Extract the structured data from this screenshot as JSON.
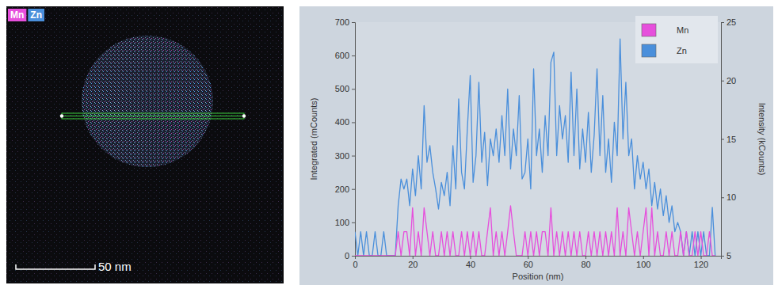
{
  "chart_data": {
    "type": "line",
    "xlabel": "Position (nm)",
    "ylabel": "Integrated (mCounts)",
    "y2label": "Intensity (kCounts)",
    "xlim": [
      0,
      127
    ],
    "xticks": [
      0,
      20,
      40,
      60,
      80,
      100,
      120
    ],
    "ylim": [
      0,
      700
    ],
    "yticks": [
      0,
      100,
      200,
      300,
      400,
      500,
      600,
      700
    ],
    "y2lim": [
      5,
      25
    ],
    "y2ticks": [
      5,
      10,
      15,
      20,
      25
    ],
    "legend": "upper right",
    "x": [
      0,
      1,
      2,
      3,
      4,
      5,
      6,
      7,
      8,
      9,
      10,
      11,
      12,
      13,
      14,
      15,
      16,
      17,
      18,
      19,
      20,
      21,
      22,
      23,
      24,
      25,
      26,
      27,
      28,
      29,
      30,
      31,
      32,
      33,
      34,
      35,
      36,
      37,
      38,
      39,
      40,
      41,
      42,
      43,
      44,
      45,
      46,
      47,
      48,
      49,
      50,
      51,
      52,
      53,
      54,
      55,
      56,
      57,
      58,
      59,
      60,
      61,
      62,
      63,
      64,
      65,
      66,
      67,
      68,
      69,
      70,
      71,
      72,
      73,
      74,
      75,
      76,
      77,
      78,
      79,
      80,
      81,
      82,
      83,
      84,
      85,
      86,
      87,
      88,
      89,
      90,
      91,
      92,
      93,
      94,
      95,
      96,
      97,
      98,
      99,
      100,
      101,
      102,
      103,
      104,
      105,
      106,
      107,
      108,
      109,
      110,
      111,
      112,
      113,
      114,
      115,
      116,
      117,
      118,
      119,
      120,
      121,
      122,
      123,
      124,
      125
    ],
    "series": [
      {
        "name": "Mn",
        "color": "#e64fdc",
        "values": [
          0,
          0,
          0,
          0,
          0,
          0,
          0,
          0,
          0,
          0,
          0,
          0,
          0,
          0,
          0,
          72,
          0,
          72,
          72,
          0,
          144,
          0,
          72,
          0,
          144,
          72,
          0,
          72,
          0,
          0,
          72,
          0,
          72,
          0,
          72,
          0,
          0,
          72,
          0,
          72,
          0,
          72,
          0,
          72,
          0,
          0,
          72,
          144,
          0,
          72,
          0,
          72,
          0,
          72,
          150,
          72,
          0,
          0,
          0,
          72,
          0,
          72,
          0,
          72,
          0,
          72,
          72,
          0,
          144,
          0,
          72,
          0,
          72,
          0,
          72,
          0,
          72,
          0,
          72,
          0,
          0,
          72,
          0,
          72,
          0,
          72,
          0,
          72,
          0,
          72,
          0,
          144,
          0,
          72,
          0,
          144,
          72,
          0,
          72,
          0,
          72,
          144,
          0,
          144,
          0,
          72,
          0,
          0,
          72,
          0,
          72,
          0,
          0,
          72,
          0,
          72,
          0,
          0,
          72,
          0,
          72,
          0,
          0,
          72,
          0,
          0
        ]
      },
      {
        "name": "Zn",
        "color": "#4a8fdb",
        "values": [
          72,
          0,
          72,
          0,
          72,
          0,
          0,
          72,
          0,
          0,
          72,
          0,
          0,
          0,
          0,
          150,
          230,
          200,
          230,
          150,
          260,
          180,
          300,
          200,
          450,
          280,
          330,
          250,
          200,
          140,
          220,
          180,
          250,
          150,
          330,
          200,
          470,
          250,
          200,
          380,
          540,
          220,
          300,
          520,
          280,
          370,
          210,
          350,
          300,
          380,
          280,
          420,
          300,
          500,
          260,
          380,
          300,
          480,
          230,
          250,
          350,
          200,
          560,
          300,
          380,
          250,
          420,
          300,
          580,
          610,
          300,
          450,
          350,
          420,
          280,
          550,
          300,
          500,
          260,
          380,
          280,
          430,
          250,
          360,
          560,
          300,
          480,
          250,
          350,
          220,
          400,
          300,
          650,
          350,
          520,
          300,
          350,
          200,
          300,
          230,
          280,
          200,
          260,
          150,
          220,
          140,
          200,
          120,
          180,
          100,
          150,
          72,
          100,
          72,
          0,
          72,
          0,
          72,
          0,
          72,
          0,
          72,
          0,
          0,
          145,
          0
        ]
      }
    ]
  },
  "image_panel": {
    "labels": [
      {
        "text": "Mn",
        "color": "#e64fdc"
      },
      {
        "text": "Zn",
        "color": "#4a8fdb"
      }
    ],
    "scale_bar": "50 nm"
  }
}
